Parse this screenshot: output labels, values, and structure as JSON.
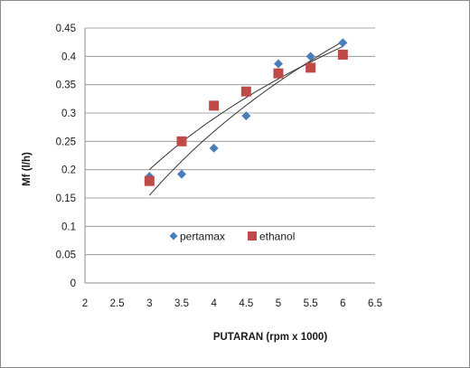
{
  "chart_data": {
    "type": "scatter",
    "xlabel": "PUTARAN (rpm x 1000)",
    "ylabel": "Mf (l/h)",
    "xlim": [
      2,
      6.5
    ],
    "ylim": [
      0,
      0.45
    ],
    "x_ticks": [
      "2",
      "2.5",
      "3",
      "3.5",
      "4",
      "4.5",
      "5",
      "5.5",
      "6",
      "6.5"
    ],
    "y_ticks": [
      "0",
      "0.05",
      "0.1",
      "0.15",
      "0.2",
      "0.25",
      "0.3",
      "0.35",
      "0.4",
      "0.45"
    ],
    "grid": "horizontal",
    "legend_position": "inside-center",
    "series": [
      {
        "name": "pertamax",
        "marker": "diamond",
        "color": "#4a7ebb",
        "points": [
          [
            3,
            0.188
          ],
          [
            3.5,
            0.192
          ],
          [
            4,
            0.238
          ],
          [
            4.5,
            0.295
          ],
          [
            5,
            0.387
          ],
          [
            5.5,
            0.4
          ],
          [
            6,
            0.424
          ]
        ],
        "trendline": "logarithmic"
      },
      {
        "name": "ethanol",
        "marker": "square",
        "color": "#be4b48",
        "points": [
          [
            3,
            0.18
          ],
          [
            3.5,
            0.25
          ],
          [
            4,
            0.313
          ],
          [
            4.5,
            0.338
          ],
          [
            5,
            0.37
          ],
          [
            5.5,
            0.38
          ],
          [
            6,
            0.403
          ]
        ],
        "trendline": "logarithmic"
      }
    ]
  }
}
